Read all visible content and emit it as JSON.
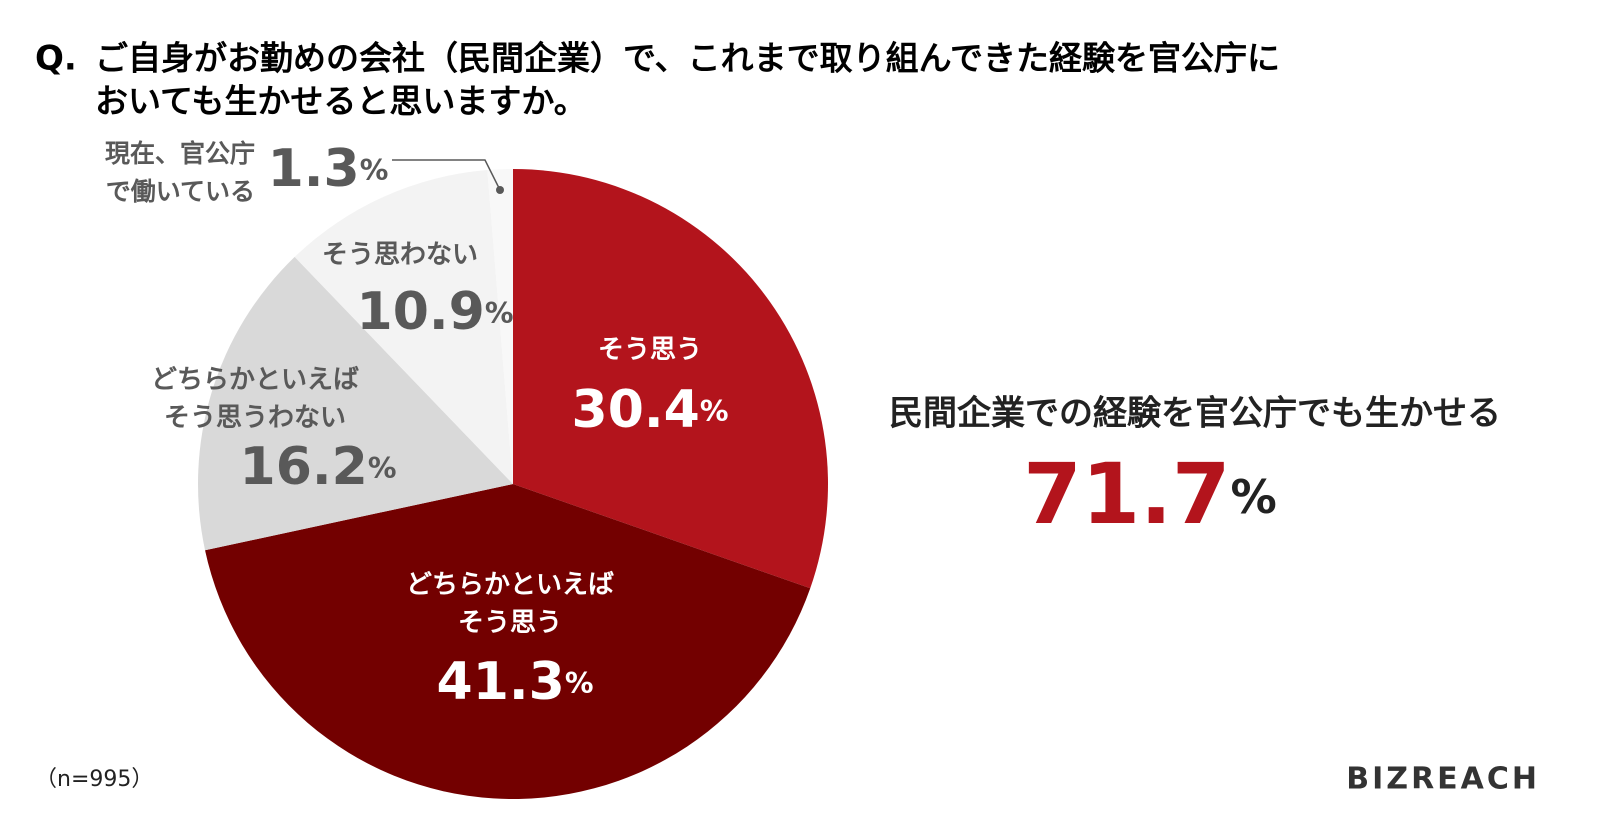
{
  "chart_data": {
    "type": "pie",
    "title_prefix": "Q.",
    "title": [
      "ご自身がお勤めの会社（民間企業）で、これまで取り組んできた経験を官公庁に",
      "おいても生かせると思いますか。"
    ],
    "categories": [
      "そう思う",
      "どちらかといえば\nそう思う",
      "どちらかといえば\nそう思うわない",
      "そう思わない",
      "現在、官公庁\nで働いている"
    ],
    "values": [
      30.4,
      41.3,
      16.2,
      10.9,
      1.3
    ],
    "value_labels": [
      "30.4%",
      "41.3%",
      "16.2%",
      "10.9%",
      "1.3%"
    ],
    "colors": [
      "#b3141c",
      "#730000",
      "#d9d9d9",
      "#f3f3f3",
      "#f8f8f8"
    ],
    "label_colors": [
      "#ffffff",
      "#ffffff",
      "#595959",
      "#595959",
      "#595959"
    ],
    "annotation": "民間企業での経験を官公庁でも生かせる",
    "annotation_value": 71.7,
    "annotation_value_label": "71.7%",
    "annotation_color": "#b3141c",
    "note": "（n=995）",
    "logo": "BIZREACH"
  }
}
